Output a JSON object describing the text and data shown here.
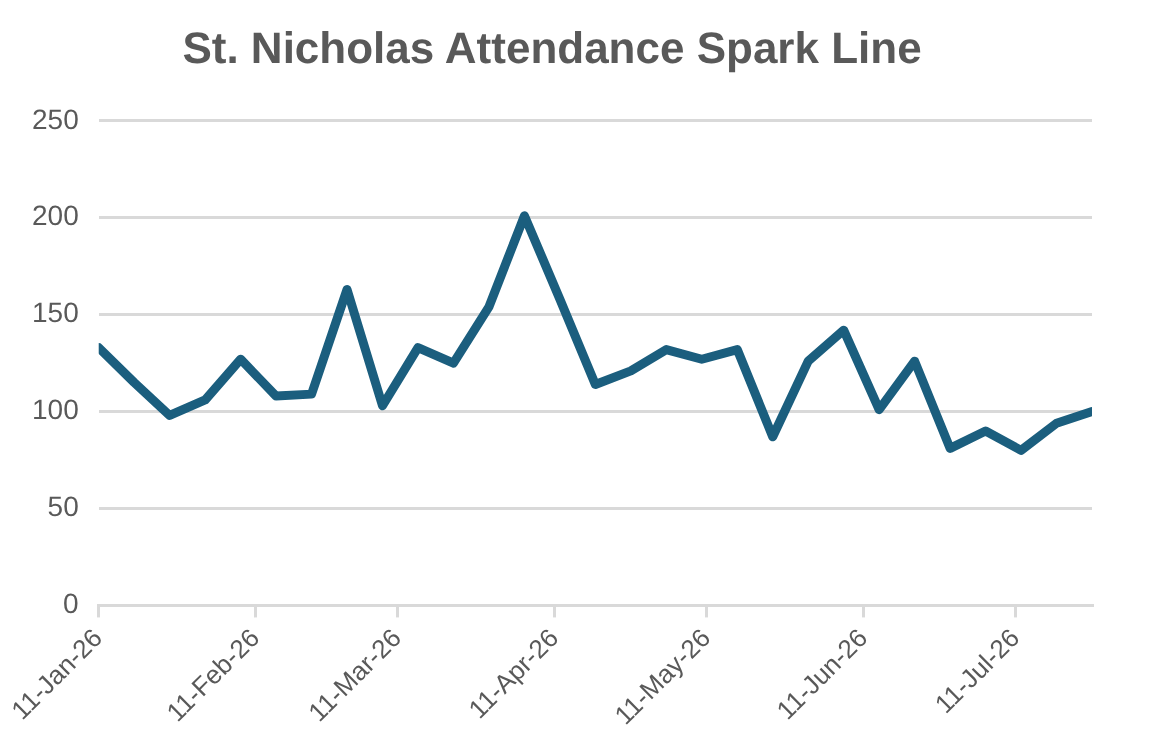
{
  "chart_data": {
    "type": "line",
    "title": "St. Nicholas Attendance Spark Line",
    "x": [
      "2026-01-11",
      "2026-01-18",
      "2026-01-25",
      "2026-02-01",
      "2026-02-08",
      "2026-02-15",
      "2026-02-22",
      "2026-03-01",
      "2026-03-08",
      "2026-03-15",
      "2026-03-22",
      "2026-03-29",
      "2026-04-05",
      "2026-04-12",
      "2026-04-19",
      "2026-04-26",
      "2026-05-03",
      "2026-05-10",
      "2026-05-17",
      "2026-05-24",
      "2026-05-31",
      "2026-06-07",
      "2026-06-14",
      "2026-06-21",
      "2026-06-28",
      "2026-07-05",
      "2026-07-12",
      "2026-07-19",
      "2026-07-26"
    ],
    "series": [
      {
        "color": "#1b5e7e",
        "values": [
          133,
          115,
          98,
          106,
          127,
          108,
          109,
          163,
          103,
          133,
          125,
          154,
          201,
          158,
          114,
          121,
          132,
          127,
          132,
          87,
          126,
          142,
          101,
          126,
          81,
          90,
          80,
          94,
          100
        ]
      }
    ],
    "xlim": [
      "2026-01-11",
      "2026-07-26"
    ],
    "xticks": [
      {
        "value": "2026-01-11",
        "label": "11-Jan-26"
      },
      {
        "value": "2026-02-11",
        "label": "11-Feb-26"
      },
      {
        "value": "2026-03-11",
        "label": "11-Mar-26"
      },
      {
        "value": "2026-04-11",
        "label": "11-Apr-26"
      },
      {
        "value": "2026-05-11",
        "label": "11-May-26"
      },
      {
        "value": "2026-06-11",
        "label": "11-Jun-26"
      },
      {
        "value": "2026-07-11",
        "label": "11-Jul-26"
      }
    ],
    "ylim": [
      0,
      250
    ],
    "yticks": [
      0,
      50,
      100,
      150,
      200,
      250
    ],
    "grid": "y",
    "legend": false,
    "marker": "none",
    "line_style": "solid"
  }
}
